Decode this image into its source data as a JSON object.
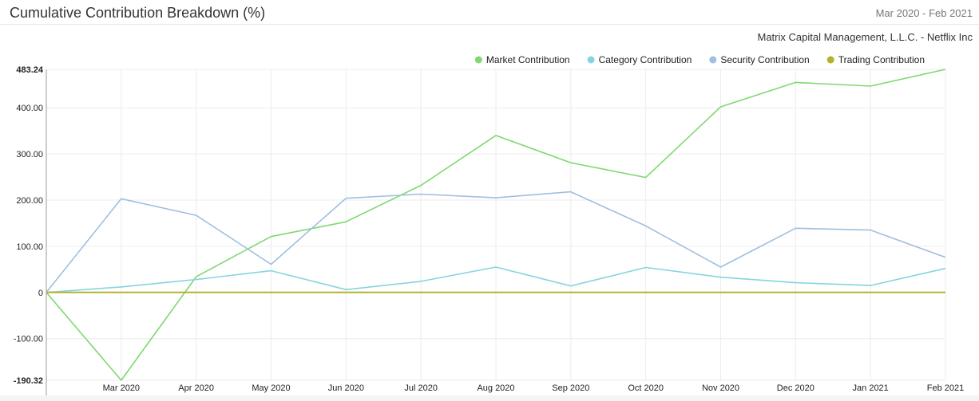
{
  "header": {
    "title": "Cumulative Contribution Breakdown (%)",
    "date_range": "Mar 2020 - Feb 2021",
    "subtitle": "Matrix Capital Management, L.L.C. - Netflix Inc"
  },
  "chart_data": {
    "type": "line",
    "x": [
      "",
      "Mar 2020",
      "Apr 2020",
      "May 2020",
      "Jun 2020",
      "Jul 2020",
      "Aug 2020",
      "Sep 2020",
      "Oct 2020",
      "Nov 2020",
      "Dec 2020",
      "Jan 2021",
      "Feb 2021"
    ],
    "ylim": [
      -190.32,
      483.24
    ],
    "yticks": [
      {
        "value": 483.24,
        "label": "483.24",
        "bold": true
      },
      {
        "value": 400,
        "label": "400.00"
      },
      {
        "value": 300,
        "label": "300.00"
      },
      {
        "value": 200,
        "label": "200.00"
      },
      {
        "value": 100,
        "label": "100.00"
      },
      {
        "value": 0,
        "label": "0"
      },
      {
        "value": -100,
        "label": "-100.00"
      },
      {
        "value": -190.32,
        "label": "-190.32",
        "bold": true
      }
    ],
    "grid": true,
    "legend_position": "top-right",
    "series": [
      {
        "name": "Market Contribution",
        "color": "#7fd870",
        "values": [
          0,
          -190.32,
          34,
          121,
          153,
          232,
          340,
          281,
          249,
          402,
          455,
          447,
          483.24
        ]
      },
      {
        "name": "Category Contribution",
        "color": "#85d4e0",
        "values": [
          0,
          12,
          28,
          47,
          6,
          24,
          55,
          14,
          54,
          33,
          21,
          15,
          52
        ]
      },
      {
        "name": "Security Contribution",
        "color": "#9fbfdf",
        "values": [
          0,
          203,
          167,
          61,
          204,
          213,
          205,
          218,
          144,
          55,
          139,
          135,
          76
        ]
      },
      {
        "name": "Trading Contribution",
        "color": "#b5b22a",
        "values": [
          0,
          0,
          0,
          0,
          0,
          0,
          0,
          0,
          0,
          0,
          0,
          0,
          0
        ]
      }
    ]
  }
}
